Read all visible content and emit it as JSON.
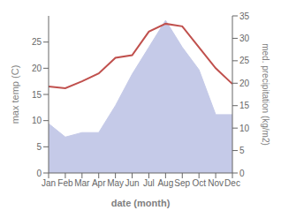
{
  "chart_data": {
    "type": "line",
    "xlabel": "date (month)",
    "ylabel": "max temp (C)",
    "y2label": "med. precipitation (kg/m2)",
    "categories": [
      "Jan",
      "Feb",
      "Mar",
      "Apr",
      "May",
      "Jun",
      "Jul",
      "Aug",
      "Sep",
      "Oct",
      "Nov",
      "Dec"
    ],
    "series": [
      {
        "type": "area",
        "color": "#c5cae8",
        "axis": "y2",
        "values": [
          11,
          8,
          9,
          9,
          15,
          22,
          28,
          34,
          28,
          23,
          13,
          13
        ]
      },
      {
        "type": "line",
        "color": "#c0504d",
        "values": [
          16.5,
          16.2,
          17.5,
          19,
          22,
          22.5,
          27,
          28.5,
          28,
          24,
          20,
          17
        ]
      }
    ],
    "ylim": [
      0,
      30
    ],
    "yticks": [
      0,
      5,
      10,
      15,
      20,
      25
    ],
    "y2lim": [
      0,
      35
    ],
    "y2ticks": [
      0,
      5,
      10,
      15,
      20,
      25,
      30,
      35
    ],
    "grid": false
  }
}
